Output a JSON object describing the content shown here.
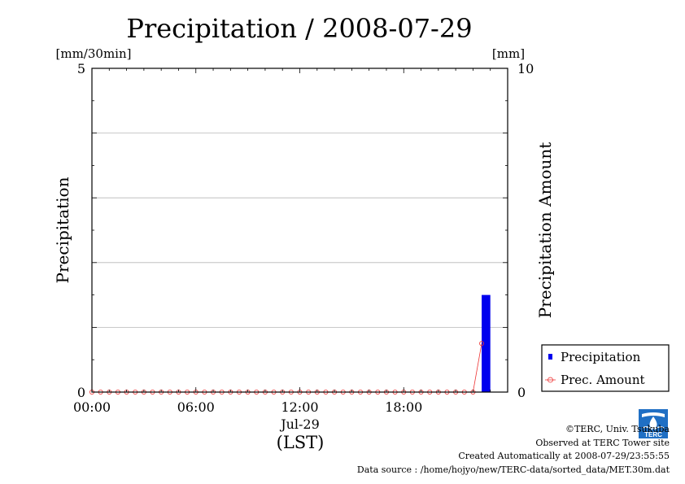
{
  "chart_data": {
    "type": "bar",
    "title": "Precipitation / 2008-07-29",
    "ylabel_left": "Precipitation",
    "ylabel_right": "Precipitation Amount",
    "unit_left": "[mm/30min]",
    "unit_right": "[mm]",
    "xlabel": "(LST)",
    "date_label": "Jul-29",
    "ylim_left": [
      0,
      5
    ],
    "ylim_right": [
      0,
      10
    ],
    "y_ticks_left": [
      "0",
      "5"
    ],
    "y_ticks_right": [
      "0",
      "10"
    ],
    "x_ticks": [
      "00:00",
      "06:00",
      "12:00",
      "18:00"
    ],
    "grid": true,
    "legend_position": "bottom-right",
    "series": [
      {
        "name": "Precipitation",
        "kind": "bar",
        "axis": "left",
        "color": "#0000ee",
        "x_hours": [
          22.5
        ],
        "values": [
          1.5
        ]
      },
      {
        "name": "Prec. Amount",
        "kind": "line-marker",
        "axis": "right",
        "color": "#ee3333",
        "x_hours": [
          0,
          0.5,
          1,
          1.5,
          2,
          2.5,
          3,
          3.5,
          4,
          4.5,
          5,
          5.5,
          6,
          6.5,
          7,
          7.5,
          8,
          8.5,
          9,
          9.5,
          10,
          10.5,
          11,
          11.5,
          12,
          12.5,
          13,
          13.5,
          14,
          14.5,
          15,
          15.5,
          16,
          16.5,
          17,
          17.5,
          18,
          18.5,
          19,
          19.5,
          20,
          20.5,
          21,
          21.5,
          22,
          22.5
        ],
        "values": [
          0,
          0,
          0,
          0,
          0,
          0,
          0,
          0,
          0,
          0,
          0,
          0,
          0,
          0,
          0,
          0,
          0,
          0,
          0,
          0,
          0,
          0,
          0,
          0,
          0,
          0,
          0,
          0,
          0,
          0,
          0,
          0,
          0,
          0,
          0,
          0,
          0,
          0,
          0,
          0,
          0,
          0,
          0,
          0,
          0,
          1.5
        ]
      }
    ]
  },
  "footer": {
    "copyright": "©TERC, Univ. Tsukuba",
    "observed": "Observed at TERC Tower site",
    "created": "Created Automatically at 2008-07-29/23:55:55",
    "source": "Data source : /home/hojyo/new/TERC-data/sorted_data/MET.30m.dat"
  },
  "logo": {
    "text": "TERC",
    "color": "#1f6fc4"
  }
}
